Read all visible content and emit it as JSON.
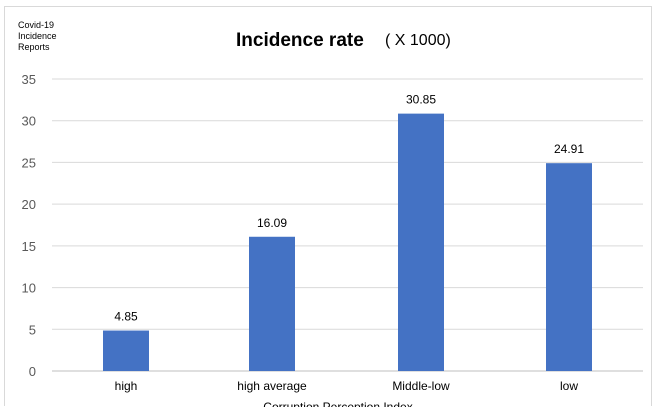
{
  "corner_label": "Covid-19\nIncidence\nReports",
  "chart_data": {
    "type": "bar",
    "title": "Incidence rate",
    "subtitle": "( X 1000)",
    "xlabel": "Corruption Perception Index",
    "ylabel": "",
    "categories": [
      "high",
      "high average",
      "Middle-low",
      "low"
    ],
    "values": [
      4.85,
      16.09,
      30.85,
      24.91
    ],
    "data_labels": [
      "4.85",
      "16.09",
      "30.85",
      "24.91"
    ],
    "y_ticks": [
      0,
      5,
      10,
      15,
      20,
      25,
      30,
      35
    ],
    "ylim": [
      0,
      35
    ],
    "grid": true,
    "bar_color": "#4472c4"
  }
}
